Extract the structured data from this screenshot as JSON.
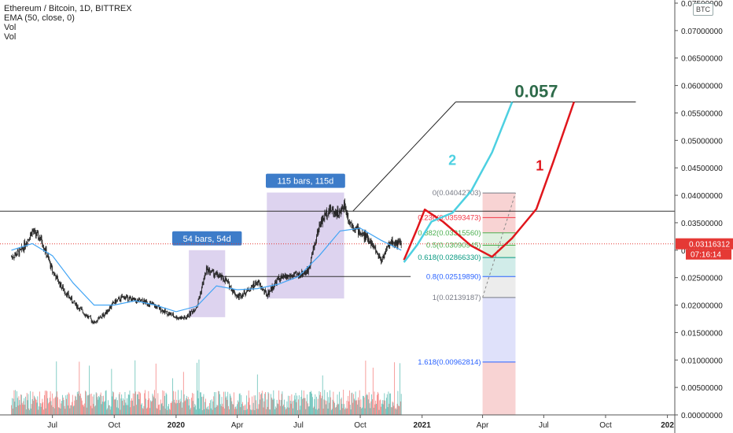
{
  "legend": {
    "title": "Ethereum / Bitcoin, 1D, BITTREX",
    "ema": "EMA (50, close, 0)",
    "vol1": "Vol",
    "vol2": "Vol"
  },
  "currency_badge": "BTC",
  "colors": {
    "up": "#26a69a",
    "down": "#ef5350",
    "candle": "#222222",
    "ema": "#42a5f5",
    "path_red": "#e0161c",
    "path_cyan": "#4dd0e1",
    "target_green": "#2e6b4a",
    "price_tag": "#e53935",
    "range_box": "#b39ddb",
    "range_label_bg": "#3d7cc9"
  },
  "chart_data": {
    "type": "candlestick",
    "title": "Ethereum / Bitcoin, 1D, BITTREX",
    "y_axis": {
      "min": 0,
      "max": 0.075,
      "ticks": [
        "0.07500000",
        "0.07000000",
        "0.06500000",
        "0.06000000",
        "0.05500000",
        "0.05000000",
        "0.04500000",
        "0.04000000",
        "0.03500000",
        "0.03000000",
        "0.02500000",
        "0.02000000",
        "0.01500000",
        "0.01000000",
        "0.00500000",
        "0.00000000"
      ],
      "tick_values": [
        0.075,
        0.07,
        0.065,
        0.06,
        0.055,
        0.05,
        0.045,
        0.04,
        0.035,
        0.03,
        0.025,
        0.02,
        0.015,
        0.01,
        0.005,
        0.0
      ]
    },
    "x_axis": {
      "labels": [
        "Jul",
        "Oct",
        "2020",
        "Apr",
        "Jul",
        "Oct",
        "2021",
        "Apr",
        "Jul",
        "Oct",
        "202"
      ],
      "label_dates": [
        "2019-07-01",
        "2019-10-01",
        "2020-01-01",
        "2020-04-01",
        "2020-07-01",
        "2020-10-01",
        "2021-01-01",
        "2021-04-01",
        "2021-07-01",
        "2021-10-01",
        "2022-01-01"
      ]
    },
    "price_series": [
      [
        "2019-05-01",
        0.0288
      ],
      [
        "2019-05-15",
        0.0298
      ],
      [
        "2019-06-01",
        0.0335
      ],
      [
        "2019-06-15",
        0.0318
      ],
      [
        "2019-07-01",
        0.0262
      ],
      [
        "2019-07-15",
        0.0232
      ],
      [
        "2019-08-01",
        0.0205
      ],
      [
        "2019-08-15",
        0.0188
      ],
      [
        "2019-09-01",
        0.0168
      ],
      [
        "2019-09-15",
        0.0182
      ],
      [
        "2019-10-01",
        0.0205
      ],
      [
        "2019-10-15",
        0.0215
      ],
      [
        "2019-11-01",
        0.0208
      ],
      [
        "2019-11-15",
        0.0206
      ],
      [
        "2019-12-01",
        0.0198
      ],
      [
        "2019-12-15",
        0.0188
      ],
      [
        "2020-01-01",
        0.0178
      ],
      [
        "2020-01-15",
        0.0176
      ],
      [
        "2020-02-01",
        0.0198
      ],
      [
        "2020-02-15",
        0.0265
      ],
      [
        "2020-03-01",
        0.0255
      ],
      [
        "2020-03-15",
        0.0245
      ],
      [
        "2020-04-01",
        0.0215
      ],
      [
        "2020-04-15",
        0.0225
      ],
      [
        "2020-05-01",
        0.0242
      ],
      [
        "2020-05-15",
        0.0218
      ],
      [
        "2020-06-01",
        0.0248
      ],
      [
        "2020-06-15",
        0.0252
      ],
      [
        "2020-07-01",
        0.0255
      ],
      [
        "2020-07-15",
        0.0262
      ],
      [
        "2020-08-01",
        0.0345
      ],
      [
        "2020-08-15",
        0.0375
      ],
      [
        "2020-09-01",
        0.0366
      ],
      [
        "2020-09-07",
        0.0385
      ],
      [
        "2020-09-15",
        0.0352
      ],
      [
        "2020-10-01",
        0.0332
      ],
      [
        "2020-10-15",
        0.0318
      ],
      [
        "2020-11-01",
        0.0282
      ],
      [
        "2020-11-15",
        0.0315
      ],
      [
        "2020-12-01",
        0.0312
      ]
    ],
    "ema_series": [
      [
        "2019-05-01",
        0.03
      ],
      [
        "2019-06-01",
        0.0312
      ],
      [
        "2019-07-01",
        0.029
      ],
      [
        "2019-08-01",
        0.024
      ],
      [
        "2019-09-01",
        0.02
      ],
      [
        "2019-10-01",
        0.02
      ],
      [
        "2019-11-01",
        0.0208
      ],
      [
        "2019-12-01",
        0.02
      ],
      [
        "2020-01-01",
        0.0188
      ],
      [
        "2020-02-01",
        0.0198
      ],
      [
        "2020-03-01",
        0.0235
      ],
      [
        "2020-04-01",
        0.0228
      ],
      [
        "2020-05-01",
        0.023
      ],
      [
        "2020-06-01",
        0.0238
      ],
      [
        "2020-07-01",
        0.0252
      ],
      [
        "2020-08-01",
        0.029
      ],
      [
        "2020-09-01",
        0.0335
      ],
      [
        "2020-10-01",
        0.034
      ],
      [
        "2020-11-01",
        0.0318
      ],
      [
        "2020-12-01",
        0.03
      ]
    ],
    "horizontal_lines": [
      0.0371,
      0.0252
    ],
    "target": {
      "value": 0.057,
      "label": "0.057"
    },
    "current_price": {
      "value": 0.03116312,
      "label": "0.03116312",
      "countdown": "07:16:14"
    },
    "fib_levels": [
      {
        "ratio": "0",
        "value": 0.04042703,
        "label": "0(0.04042703)",
        "color": "#787b86"
      },
      {
        "ratio": "0.236",
        "value": 0.03593473,
        "label": "0.236(0.03593473)",
        "color": "#f23645"
      },
      {
        "ratio": "0.382",
        "value": 0.0331556,
        "label": "0.382(0.03315560)",
        "color": "#4caf50"
      },
      {
        "ratio": "0.5",
        "value": 0.03090945,
        "label": "0.5(0.03090945)",
        "color": "#4caf50"
      },
      {
        "ratio": "0.618",
        "value": 0.0286633,
        "label": "0.618(0.02866330)",
        "color": "#089981"
      },
      {
        "ratio": "0.8",
        "value": 0.0251989,
        "label": "0.8(0.02519890)",
        "color": "#2962ff"
      },
      {
        "ratio": "1",
        "value": 0.02139187,
        "label": "1(0.02139187)",
        "color": "#787b86"
      },
      {
        "ratio": "1.618",
        "value": 0.00962814,
        "label": "1.618(0.00962814)",
        "color": "#2962ff"
      }
    ],
    "range_annotations": [
      {
        "label": "54 bars, 54d",
        "from": "2020-01-20",
        "to": "2020-03-14",
        "low": 0.0178,
        "high": 0.03
      },
      {
        "label": "115 bars, 115d",
        "from": "2020-05-15",
        "to": "2020-09-07",
        "low": 0.0212,
        "high": 0.0405
      }
    ],
    "projection_paths": [
      {
        "label": "1",
        "color": "#e0161c",
        "points": [
          [
            "2020-12-05",
            0.0282
          ],
          [
            "2020-12-25",
            0.034
          ],
          [
            "2021-01-05",
            0.0374
          ],
          [
            "2021-02-01",
            0.0352
          ],
          [
            "2021-03-15",
            0.0308
          ],
          [
            "2021-04-15",
            0.0288
          ],
          [
            "2021-05-15",
            0.0322
          ],
          [
            "2021-06-20",
            0.0375
          ],
          [
            "2021-07-15",
            0.046
          ],
          [
            "2021-08-15",
            0.057
          ]
        ]
      },
      {
        "label": "2",
        "color": "#4dd0e1",
        "points": [
          [
            "2020-12-05",
            0.0278
          ],
          [
            "2020-12-25",
            0.031
          ],
          [
            "2021-01-15",
            0.0352
          ],
          [
            "2021-02-15",
            0.0368
          ],
          [
            "2021-03-15",
            0.0408
          ],
          [
            "2021-04-15",
            0.0478
          ],
          [
            "2021-05-15",
            0.057
          ]
        ]
      }
    ]
  }
}
